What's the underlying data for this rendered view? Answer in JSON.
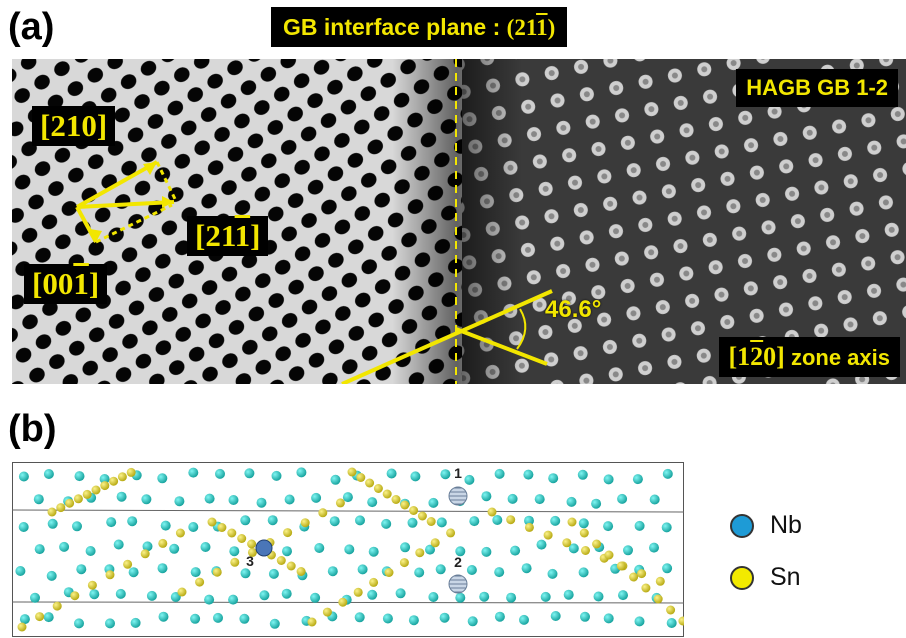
{
  "panel_a": {
    "label": "(a)",
    "gb_plane_text": "GB interface plane : ",
    "gb_plane_index_pre": "(21",
    "gb_plane_index_bar": "1",
    "gb_plane_index_post": ")",
    "hagb_label": "HAGB GB 1-2",
    "dir_210": "[210]",
    "dir_211_pre": "[21",
    "dir_211_bar": "1",
    "dir_211_post": "]",
    "dir_001_pre": "[00",
    "dir_001_bar": "1",
    "dir_001_post": "]",
    "angle": "46.6°",
    "zone_pre": "[1",
    "zone_bar": "2",
    "zone_post": "0]",
    "zone_text": " zone axis",
    "accent_color": "#f2e600"
  },
  "panel_b": {
    "label": "(b)",
    "site_labels": [
      "1",
      "2",
      "3"
    ],
    "legend": [
      {
        "name": "Nb",
        "color": "#1e9bd6"
      },
      {
        "name": "Sn",
        "color": "#f2ea00"
      }
    ]
  }
}
